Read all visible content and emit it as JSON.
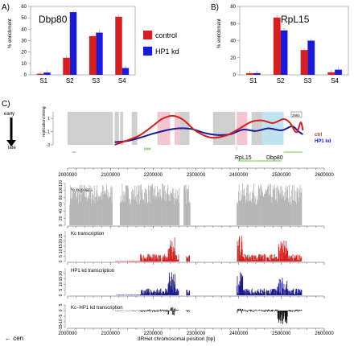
{
  "panel_labels": {
    "a": "A)",
    "b": "B)",
    "c": "C)"
  },
  "legend": {
    "control": "control",
    "hp1kd": "HP1 kd"
  },
  "colors": {
    "control": "#d81e1e",
    "hp1kd": "#1a1adc",
    "gray": "#b4b4b4",
    "green": "#6fcf3f",
    "black": "#111111"
  },
  "chart_data": [
    {
      "type": "bar",
      "title": "Dbp80",
      "ylabel": "% enrichment",
      "ylim": [
        0,
        60
      ],
      "yticks": [
        0,
        10,
        20,
        30,
        40,
        50,
        60
      ],
      "categories": [
        "S1",
        "S2",
        "S3",
        "S4"
      ],
      "series": [
        {
          "name": "control",
          "values": [
            1,
            15,
            34,
            51
          ]
        },
        {
          "name": "HP1 kd",
          "values": [
            2,
            55,
            37,
            6
          ]
        }
      ]
    },
    {
      "type": "bar",
      "title": "RpL15",
      "ylabel": "% enrichment",
      "ylim": [
        0,
        80
      ],
      "yticks": [
        0,
        20,
        40,
        60,
        80
      ],
      "categories": [
        "S1",
        "S2",
        "S3",
        "S4"
      ],
      "series": [
        {
          "name": "control",
          "values": [
            2,
            67,
            29,
            3
          ]
        },
        {
          "name": "HP1 kd",
          "values": [
            2,
            52,
            40,
            6
          ]
        }
      ]
    },
    {
      "type": "line",
      "title": "",
      "ylabel": "replication timing",
      "ylim": [
        -3,
        2
      ],
      "yticks": [
        1,
        -1,
        -3
      ],
      "xlim": [
        2000000,
        2600000
      ],
      "series": [
        {
          "name": "ctrl",
          "x": [
            2110000,
            2140000,
            2170000,
            2200000,
            2220000,
            2245000,
            2270000,
            2300000,
            2335000,
            2370000,
            2400000,
            2430000,
            2455000,
            2480000,
            2505000,
            2520000,
            2535000,
            2545000,
            2550000
          ],
          "y": [
            -3,
            -2.3,
            -1.5,
            -0.1,
            0.9,
            1.4,
            0.8,
            -0.9,
            -1.9,
            -1.6,
            -0.6,
            0.5,
            0.7,
            0.3,
            0.9,
            0.3,
            -1.1,
            0.4,
            -0.8
          ]
        },
        {
          "name": "HP1 kd",
          "x": [
            2110000,
            2140000,
            2170000,
            2200000,
            2230000,
            2260000,
            2290000,
            2320000,
            2350000,
            2380000,
            2410000,
            2440000,
            2470000,
            2500000,
            2525000,
            2540000,
            2550000
          ],
          "y": [
            -2.6,
            -2.4,
            -1.9,
            -1.3,
            -0.8,
            -0.5,
            -0.6,
            -1.2,
            -1.5,
            -1.4,
            -0.7,
            -0.9,
            -0.5,
            -0.8,
            -0.2,
            -1.0,
            -1.4
          ]
        }
      ]
    },
    {
      "type": "area",
      "title": "% repeats",
      "xlim": [
        2000000,
        2600000
      ],
      "ylim": [
        0,
        120
      ],
      "yticks": [
        0,
        20,
        40,
        60,
        80,
        100,
        120
      ]
    },
    {
      "type": "bar",
      "title": "Kc transcription",
      "xlim": [
        2000000,
        2600000
      ],
      "ylim": [
        0,
        30
      ],
      "yticks": [
        0,
        5,
        10,
        15,
        20,
        25
      ]
    },
    {
      "type": "bar",
      "title": "HP1 kd transcription",
      "xlim": [
        2000000,
        2600000
      ],
      "ylim": [
        0,
        25
      ],
      "yticks": [
        0,
        5,
        10,
        15,
        20
      ]
    },
    {
      "type": "bar",
      "title": "Kc−HP1 kd transcription",
      "xlim": [
        2000000,
        2600000
      ],
      "ylim": [
        -15,
        5
      ],
      "yticks": [
        5,
        0,
        -5,
        -10,
        -15
      ]
    }
  ],
  "timing_axis": {
    "early": "early",
    "late": "late"
  },
  "timing_legend": {
    "ctrl": "ctrl",
    "hp1kd": "HP1 kd"
  },
  "genes": {
    "rpl15": "RpL15",
    "dbp80": "Dbp80"
  },
  "scale_bar": "25kb",
  "x_ticks": [
    "2000000",
    "2100000",
    "2200000",
    "2300000",
    "2400000",
    "2500000",
    "2600000"
  ],
  "x_label": "3RHet chromosomal position [bp]",
  "cen_label": "← cen"
}
